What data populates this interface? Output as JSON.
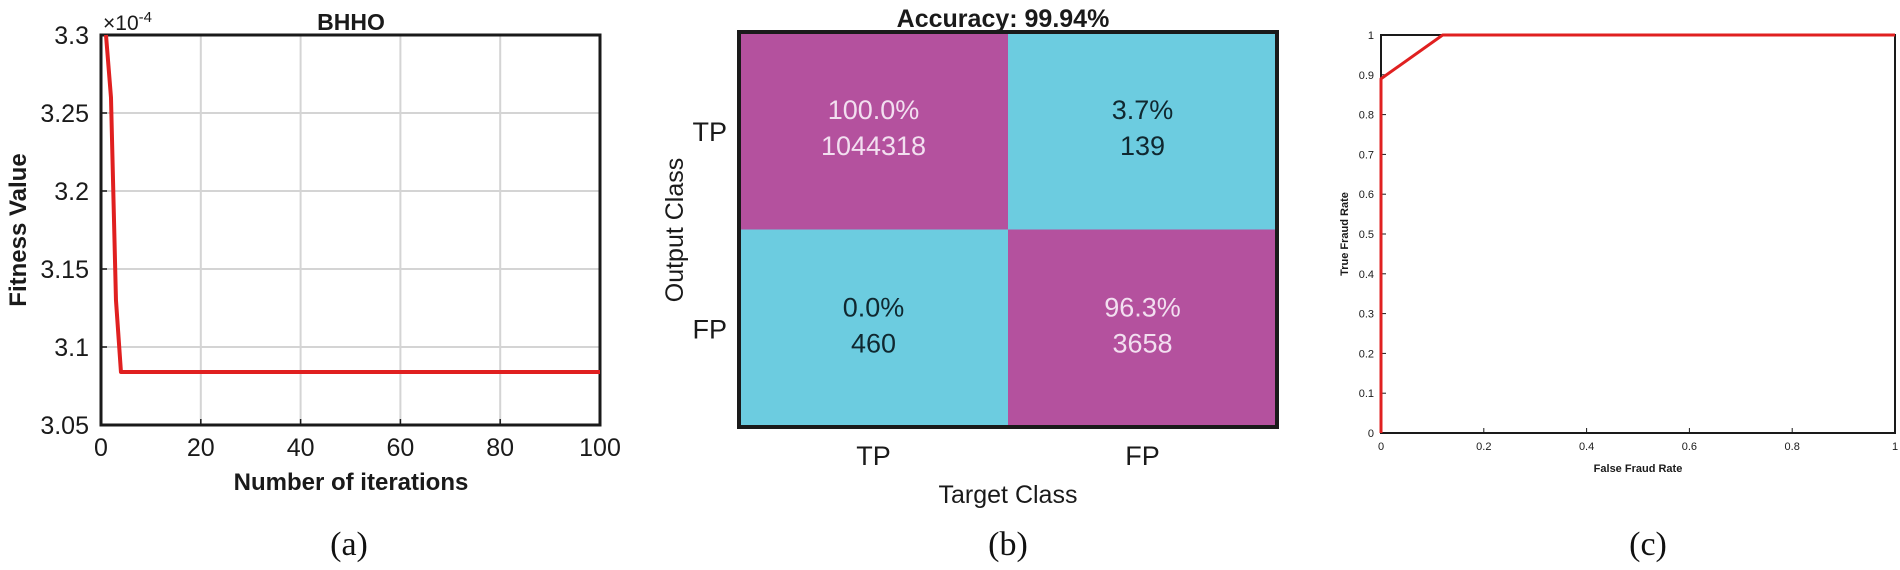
{
  "panels": {
    "a": {
      "caption": "(a)"
    },
    "b": {
      "caption": "(b)"
    },
    "c": {
      "caption": "(c)"
    }
  },
  "chart_data": [
    {
      "type": "line",
      "title": "BHHO",
      "xlabel": "Number of iterations",
      "ylabel": "Fitness Value",
      "exponent_label": "×10",
      "exponent_power": "-4",
      "xlim": [
        0,
        100
      ],
      "ylim": [
        3.05,
        3.3
      ],
      "xticks": [
        "0",
        "20",
        "40",
        "60",
        "80",
        "100"
      ],
      "yticks": [
        "3.05",
        "3.1",
        "3.15",
        "3.2",
        "3.25",
        "3.3"
      ],
      "grid": true,
      "series": [
        {
          "color": "#e02020",
          "x": [
            1,
            2,
            3,
            4,
            100
          ],
          "y": [
            3.3,
            3.26,
            3.13,
            3.084,
            3.084
          ]
        }
      ]
    },
    {
      "type": "heatmap",
      "title": "Accuracy: 99.94%",
      "xlabel": "Target Class",
      "ylabel": "Output Class",
      "x_categories": [
        "TP",
        "FP"
      ],
      "y_categories": [
        "TP",
        "FP"
      ],
      "cells": [
        [
          {
            "percent": "100.0%",
            "count": "1044318",
            "color": "#b4519e",
            "text_color": "#f2dff0"
          },
          {
            "percent": "3.7%",
            "count": "139",
            "color": "#6ccce0",
            "text_color": "#102830"
          }
        ],
        [
          {
            "percent": "0.0%",
            "count": "460",
            "color": "#6ccce0",
            "text_color": "#102830"
          },
          {
            "percent": "96.3%",
            "count": "3658",
            "color": "#b4519e",
            "text_color": "#f2dff0"
          }
        ]
      ]
    },
    {
      "type": "line",
      "xlabel": "False Fraud Rate",
      "ylabel": "True Fraud Rate",
      "xlim": [
        0,
        1
      ],
      "ylim": [
        0,
        1
      ],
      "xticks": [
        "0",
        "0.2",
        "0.4",
        "0.6",
        "0.8",
        "1"
      ],
      "yticks": [
        "0",
        "0.1",
        "0.2",
        "0.3",
        "0.4",
        "0.5",
        "0.6",
        "0.7",
        "0.8",
        "0.9",
        "1"
      ],
      "grid": false,
      "series": [
        {
          "color": "#e02020",
          "x": [
            0,
            0,
            0.12,
            1
          ],
          "y": [
            0,
            0.89,
            1,
            1
          ]
        }
      ]
    }
  ]
}
